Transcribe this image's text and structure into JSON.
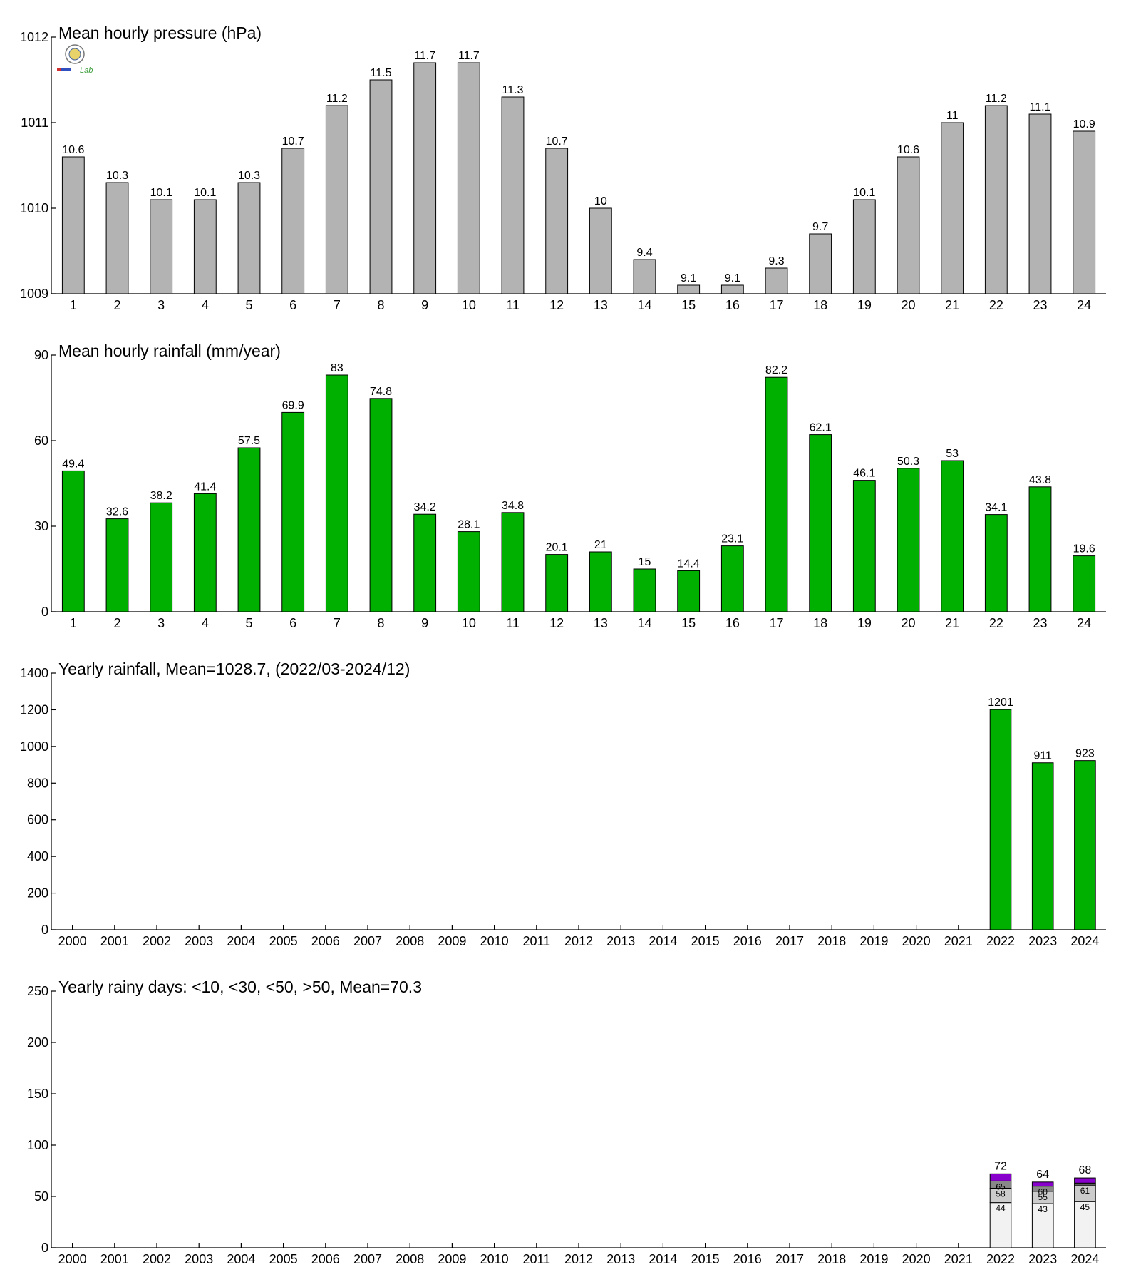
{
  "colors": {
    "pressure": "#b3b3b3",
    "rain": "#00b000",
    "rainy_lt10": "#f2f2f2",
    "rainy_lt30": "#cccccc",
    "rainy_lt50": "#888888",
    "rainy_gt50": "#8800cc"
  },
  "logo": {
    "icon": "lab-logo-icon",
    "text": "Lab"
  },
  "chart_data": [
    {
      "type": "bar",
      "title": "Mean hourly pressure (hPa)",
      "xlabel": "",
      "ylabel": "",
      "categories": [
        "1",
        "2",
        "3",
        "4",
        "5",
        "6",
        "7",
        "8",
        "9",
        "10",
        "11",
        "12",
        "13",
        "14",
        "15",
        "16",
        "17",
        "18",
        "19",
        "20",
        "21",
        "22",
        "23",
        "24"
      ],
      "values": [
        1010.6,
        1010.3,
        1010.1,
        1010.1,
        1010.3,
        1010.7,
        1011.2,
        1011.5,
        1011.7,
        1011.7,
        1011.3,
        1010.7,
        1010.0,
        1009.4,
        1009.1,
        1009.1,
        1009.3,
        1009.7,
        1010.1,
        1010.6,
        1011.0,
        1011.2,
        1011.1,
        1010.9
      ],
      "labels": [
        "10.6",
        "10.3",
        "10.1",
        "10.1",
        "10.3",
        "10.7",
        "11.2",
        "11.5",
        "11.7",
        "11.7",
        "11.3",
        "10.7",
        "10",
        "9.4",
        "9.1",
        "9.1",
        "9.3",
        "9.7",
        "10.1",
        "10.6",
        "11",
        "11.2",
        "11.1",
        "10.9"
      ],
      "ylim": [
        1009,
        1012
      ],
      "yticks": [
        1009,
        1010,
        1011,
        1012
      ],
      "grid": false
    },
    {
      "type": "bar",
      "title": "Mean hourly rainfall (mm/year)",
      "xlabel": "",
      "ylabel": "",
      "categories": [
        "1",
        "2",
        "3",
        "4",
        "5",
        "6",
        "7",
        "8",
        "9",
        "10",
        "11",
        "12",
        "13",
        "14",
        "15",
        "16",
        "17",
        "18",
        "19",
        "20",
        "21",
        "22",
        "23",
        "24"
      ],
      "values": [
        49.4,
        32.6,
        38.2,
        41.4,
        57.5,
        69.9,
        83,
        74.8,
        34.2,
        28.1,
        34.8,
        20.1,
        21,
        15,
        14.4,
        23.1,
        82.2,
        62.1,
        46.1,
        50.3,
        53,
        34.1,
        43.8,
        19.6
      ],
      "labels": [
        "49.4",
        "32.6",
        "38.2",
        "41.4",
        "57.5",
        "69.9",
        "83",
        "74.8",
        "34.2",
        "28.1",
        "34.8",
        "20.1",
        "21",
        "15",
        "14.4",
        "23.1",
        "82.2",
        "62.1",
        "46.1",
        "50.3",
        "53",
        "34.1",
        "43.8",
        "19.6"
      ],
      "ylim": [
        0,
        90
      ],
      "yticks": [
        0,
        30,
        60,
        90
      ],
      "grid": false
    },
    {
      "type": "bar",
      "title": "Yearly rainfall, Mean=1028.7, (2022/03-2024/12)",
      "xlabel": "",
      "ylabel": "",
      "categories": [
        "2000",
        "2001",
        "2002",
        "2003",
        "2004",
        "2005",
        "2006",
        "2007",
        "2008",
        "2009",
        "2010",
        "2011",
        "2012",
        "2013",
        "2014",
        "2015",
        "2016",
        "2017",
        "2018",
        "2019",
        "2020",
        "2021",
        "2022",
        "2023",
        "2024"
      ],
      "values": [
        null,
        null,
        null,
        null,
        null,
        null,
        null,
        null,
        null,
        null,
        null,
        null,
        null,
        null,
        null,
        null,
        null,
        null,
        null,
        null,
        null,
        null,
        1201,
        911,
        923
      ],
      "labels": [
        "",
        "",
        "",
        "",
        "",
        "",
        "",
        "",
        "",
        "",
        "",
        "",
        "",
        "",
        "",
        "",
        "",
        "",
        "",
        "",
        "",
        "",
        "1201",
        "911",
        "923"
      ],
      "ylim": [
        0,
        1400
      ],
      "yticks": [
        0,
        200,
        400,
        600,
        800,
        1000,
        1200,
        1400
      ],
      "grid": false
    },
    {
      "type": "bar",
      "stacked": true,
      "title": "Yearly rainy days: <10, <30, <50, >50, Mean=70.3",
      "xlabel": "",
      "ylabel": "",
      "categories": [
        "2000",
        "2001",
        "2002",
        "2003",
        "2004",
        "2005",
        "2006",
        "2007",
        "2008",
        "2009",
        "2010",
        "2011",
        "2012",
        "2013",
        "2014",
        "2015",
        "2016",
        "2017",
        "2018",
        "2019",
        "2020",
        "2021",
        "2022",
        "2023",
        "2024"
      ],
      "cumulative": {
        "2022": {
          "values": [
            44,
            58,
            65,
            72
          ],
          "labels": [
            "44",
            "58",
            "65",
            "72"
          ]
        },
        "2023": {
          "values": [
            43,
            55,
            60,
            64
          ],
          "labels": [
            "43",
            "55",
            "60",
            "64"
          ]
        },
        "2024": {
          "values": [
            45,
            61,
            63,
            68
          ],
          "labels": [
            "45",
            "61",
            "",
            "68"
          ]
        }
      },
      "ylim": [
        0,
        250
      ],
      "yticks": [
        0,
        50,
        100,
        150,
        200,
        250
      ],
      "grid": false
    }
  ]
}
